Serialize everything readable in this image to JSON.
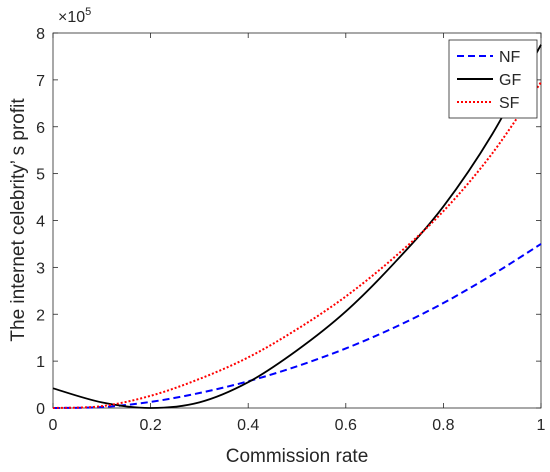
{
  "chart_data": {
    "type": "line",
    "title": "",
    "xlabel": "Commission rate",
    "ylabel": "The internet celebrity’ s profit",
    "y_multiplier": {
      "base": "×10",
      "exponent": "5"
    },
    "xlim": [
      0,
      1
    ],
    "ylim": [
      0,
      8
    ],
    "x_ticks": [
      0,
      0.2,
      0.4,
      0.6,
      0.8,
      1
    ],
    "x_tick_labels": [
      "0",
      "0.2",
      "0.4",
      "0.6",
      "0.8",
      "1"
    ],
    "y_ticks": [
      0,
      1,
      2,
      3,
      4,
      5,
      6,
      7,
      8
    ],
    "y_tick_labels": [
      "0",
      "1",
      "2",
      "3",
      "4",
      "5",
      "6",
      "7",
      "8"
    ],
    "grid": false,
    "legend_position": "top-right",
    "x": [
      0,
      0.1,
      0.2,
      0.3,
      0.4,
      0.5,
      0.6,
      0.7,
      0.8,
      0.9,
      1.0
    ],
    "series": [
      {
        "name": "NF",
        "color": "#0000ff",
        "style": "dashed",
        "values": [
          0.0,
          0.02,
          0.13,
          0.32,
          0.57,
          0.89,
          1.27,
          1.72,
          2.24,
          2.84,
          3.5
        ]
      },
      {
        "name": "GF",
        "color": "#000000",
        "style": "solid",
        "values": [
          0.42,
          0.12,
          0.0,
          0.12,
          0.55,
          1.23,
          2.06,
          3.1,
          4.3,
          5.84,
          7.75
        ]
      },
      {
        "name": "SF",
        "color": "#ff0000",
        "style": "dotted",
        "values": [
          0.0,
          0.04,
          0.26,
          0.62,
          1.08,
          1.68,
          2.38,
          3.22,
          4.2,
          5.43,
          6.95
        ]
      }
    ]
  }
}
